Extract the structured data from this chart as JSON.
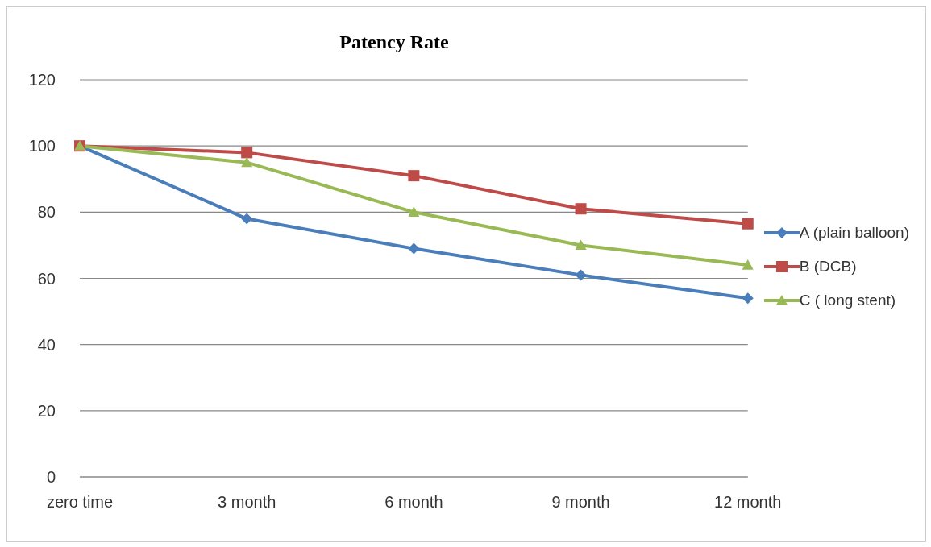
{
  "chart_data": {
    "type": "line",
    "title": "Patency Rate",
    "categories": [
      "zero time",
      "3 month",
      "6 month",
      "9 month",
      "12 month"
    ],
    "series": [
      {
        "name": "A (plain balloon)",
        "color": "#4a7ebb",
        "marker": "diamond",
        "values": [
          100,
          78,
          69,
          61,
          54
        ]
      },
      {
        "name": "B (DCB)",
        "color": "#be4b48",
        "marker": "square",
        "values": [
          100,
          98,
          91,
          81,
          76.5
        ]
      },
      {
        "name": "C ( long stent)",
        "color": "#98b954",
        "marker": "triangle",
        "values": [
          100,
          95,
          80,
          70,
          64
        ]
      }
    ],
    "ylim": [
      0,
      120
    ],
    "yticks": [
      0,
      20,
      40,
      60,
      80,
      100,
      120
    ],
    "grid": "y",
    "legend": "right",
    "line_style": "solid"
  }
}
